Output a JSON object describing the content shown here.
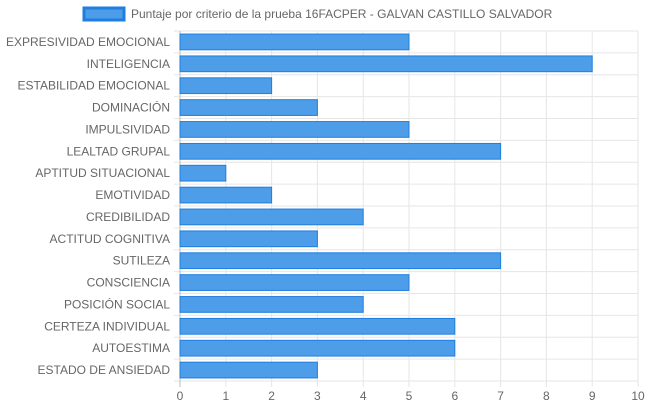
{
  "chart_data": {
    "type": "bar",
    "orientation": "horizontal",
    "categories": [
      "EXPRESIVIDAD EMOCIONAL",
      "INTELIGENCIA",
      "ESTABILIDAD EMOCIONAL",
      "DOMINACIÓN",
      "IMPULSIVIDAD",
      "LEALTAD GRUPAL",
      "APTITUD SITUACIONAL",
      "EMOTIVIDAD",
      "CREDIBILIDAD",
      "ACTITUD COGNITIVA",
      "SUTILEZA",
      "CONSCIENCIA",
      "POSICIÓN SOCIAL",
      "CERTEZA INDIVIDUAL",
      "AUTOESTIMA",
      "ESTADO DE ANSIEDAD"
    ],
    "series": [
      {
        "name": "Puntaje por criterio de la prueba 16FACPER - GALVAN CASTILLO SALVADOR",
        "values": [
          5,
          9,
          2,
          3,
          5,
          7,
          1,
          2,
          4,
          3,
          7,
          5,
          4,
          6,
          6,
          3
        ],
        "color": "#4d9de8",
        "border_color": "#1f7fe0"
      }
    ],
    "xlim": [
      0,
      10
    ],
    "x_ticks": [
      "0",
      "1",
      "2",
      "3",
      "4",
      "5",
      "6",
      "7",
      "8",
      "9",
      "10"
    ],
    "grid": true,
    "legend": "top-center",
    "title": "",
    "xlabel": "",
    "ylabel": ""
  }
}
